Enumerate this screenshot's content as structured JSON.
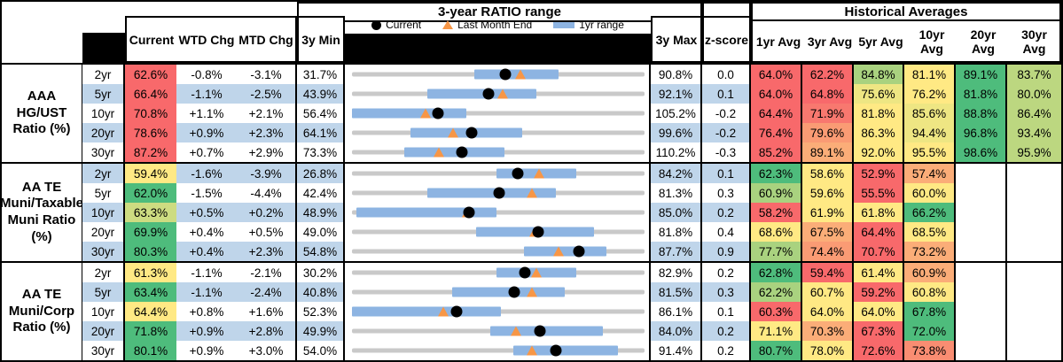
{
  "header": {
    "range_title": "3-year RATIO range",
    "averages_title": "Historical Averages",
    "current": "Current",
    "wtd": "WTD Chg",
    "mtd": "MTD Chg",
    "min": "3y Min",
    "max": "3y Max",
    "z": "z-score",
    "avg_cols": [
      "1yr Avg",
      "3yr Avg",
      "5yr Avg",
      "10yr Avg",
      "20yr Avg",
      "30yr Avg"
    ],
    "legend": {
      "current": "Current",
      "last_month": "Last Month End",
      "range": "1yr range"
    }
  },
  "colors": {
    "stripe_blue": "#BFD5EA",
    "range_bar_blue": "#8DB4E2",
    "track_gray": "#C9C9C9",
    "marker_orange": "#F79646",
    "marker_black": "#000000",
    "heat_red": "#F8696B",
    "heat_yellow": "#FFE984",
    "heat_green": "#4EBC7C"
  },
  "groups": [
    {
      "label_lines": [
        "AAA HG/UST",
        "Ratio (%)"
      ],
      "rows": [
        {
          "maturity": "2yr",
          "striped": false,
          "current": "62.6%",
          "current_bg": "#F8696B",
          "wtd": "-0.8%",
          "mtd": "-3.1%",
          "min": "31.7%",
          "max": "90.8%",
          "z": "0.0",
          "avgs": [
            {
              "v": "64.0%",
              "bg": "#F8696B"
            },
            {
              "v": "62.2%",
              "bg": "#F8696B"
            },
            {
              "v": "84.8%",
              "bg": "#A9D27F"
            },
            {
              "v": "81.1%",
              "bg": "#FFE984"
            },
            {
              "v": "89.1%",
              "bg": "#4EBC7C"
            },
            {
              "v": "83.7%",
              "bg": "#BCD780"
            }
          ],
          "chart": {
            "bar": [
              41.8,
              70.6
            ],
            "dot": 52.3,
            "tri": 57.5
          }
        },
        {
          "maturity": "5yr",
          "striped": true,
          "current": "66.4%",
          "current_bg": "#F8696B",
          "wtd": "-1.1%",
          "mtd": "-2.5%",
          "min": "43.9%",
          "max": "92.1%",
          "z": "0.1",
          "avgs": [
            {
              "v": "64.0%",
              "bg": "#F8696B"
            },
            {
              "v": "64.8%",
              "bg": "#F8696B"
            },
            {
              "v": "75.6%",
              "bg": "#EEE683"
            },
            {
              "v": "76.2%",
              "bg": "#FFE984"
            },
            {
              "v": "81.8%",
              "bg": "#4EBC7C"
            },
            {
              "v": "80.0%",
              "bg": "#BCD780"
            }
          ],
          "chart": {
            "bar": [
              25.8,
              63.0
            ],
            "dot": 46.7,
            "tri": 51.5
          }
        },
        {
          "maturity": "10yr",
          "striped": false,
          "current": "70.8%",
          "current_bg": "#F8696B",
          "wtd": "+1.1%",
          "mtd": "+2.1%",
          "min": "56.4%",
          "max": "105.2%",
          "z": "-0.2",
          "avgs": [
            {
              "v": "64.4%",
              "bg": "#F8696B"
            },
            {
              "v": "71.9%",
              "bg": "#F8786F"
            },
            {
              "v": "81.8%",
              "bg": "#FFE984"
            },
            {
              "v": "85.6%",
              "bg": "#EEE683"
            },
            {
              "v": "88.8%",
              "bg": "#4EBC7C"
            },
            {
              "v": "86.4%",
              "bg": "#BCD780"
            }
          ],
          "chart": {
            "bar": [
              0,
              39.1
            ],
            "dot": 29.5,
            "tri": 25.2
          }
        },
        {
          "maturity": "20yr",
          "striped": true,
          "current": "78.6%",
          "current_bg": "#F8696B",
          "wtd": "+0.9%",
          "mtd": "+2.3%",
          "min": "64.1%",
          "max": "99.6%",
          "z": "-0.2",
          "avgs": [
            {
              "v": "76.4%",
              "bg": "#F8696B"
            },
            {
              "v": "79.6%",
              "bg": "#FA9B74"
            },
            {
              "v": "86.3%",
              "bg": "#FFE984"
            },
            {
              "v": "94.4%",
              "bg": "#EEE683"
            },
            {
              "v": "96.8%",
              "bg": "#4EBC7C"
            },
            {
              "v": "93.4%",
              "bg": "#BCD780"
            }
          ],
          "chart": {
            "bar": [
              20.0,
              58.2
            ],
            "dot": 40.8,
            "tri": 34.5
          }
        },
        {
          "maturity": "30yr",
          "striped": false,
          "current": "87.2%",
          "current_bg": "#F8696B",
          "wtd": "+0.7%",
          "mtd": "+2.9%",
          "min": "73.3%",
          "max": "110.2%",
          "z": "-0.3",
          "avgs": [
            {
              "v": "85.2%",
              "bg": "#F8696B"
            },
            {
              "v": "89.1%",
              "bg": "#FBAD78"
            },
            {
              "v": "92.0%",
              "bg": "#FFE984"
            },
            {
              "v": "95.5%",
              "bg": "#FFE984"
            },
            {
              "v": "98.6%",
              "bg": "#4EBC7C"
            },
            {
              "v": "95.9%",
              "bg": "#BCD780"
            }
          ],
          "chart": {
            "bar": [
              17.9,
              52.1
            ],
            "dot": 37.7,
            "tri": 29.7
          }
        }
      ]
    },
    {
      "label_lines": [
        "AA TE",
        "Muni/Taxable",
        "Muni Ratio",
        "(%)"
      ],
      "rows": [
        {
          "maturity": "2yr",
          "striped": true,
          "current": "59.4%",
          "current_bg": "#FFE984",
          "wtd": "-1.6%",
          "mtd": "-3.9%",
          "min": "26.8%",
          "max": "84.2%",
          "z": "0.1",
          "avgs": [
            {
              "v": "62.3%",
              "bg": "#4EBC7C"
            },
            {
              "v": "58.6%",
              "bg": "#FFE984"
            },
            {
              "v": "52.9%",
              "bg": "#F8696B"
            },
            {
              "v": "57.4%",
              "bg": "#FBAD78"
            },
            {
              "v": "",
              "bg": "#FFFFFF"
            },
            {
              "v": "",
              "bg": "#FFFFFF"
            }
          ],
          "chart": {
            "bar": [
              49.4,
              76.7
            ],
            "dot": 56.8,
            "tri": 63.9
          }
        },
        {
          "maturity": "5yr",
          "striped": false,
          "current": "62.0%",
          "current_bg": "#4EBC7C",
          "wtd": "-1.5%",
          "mtd": "-4.4%",
          "min": "42.4%",
          "max": "81.3%",
          "z": "0.3",
          "avgs": [
            {
              "v": "60.9%",
              "bg": "#A9D27F"
            },
            {
              "v": "59.6%",
              "bg": "#FFE984"
            },
            {
              "v": "55.5%",
              "bg": "#F8696B"
            },
            {
              "v": "60.0%",
              "bg": "#FFE984"
            },
            {
              "v": "",
              "bg": "#FFFFFF"
            },
            {
              "v": "",
              "bg": "#FFFFFF"
            }
          ],
          "chart": {
            "bar": [
              25.8,
              69.7
            ],
            "dot": 50.4,
            "tri": 61.4
          }
        },
        {
          "maturity": "10yr",
          "striped": true,
          "current": "63.3%",
          "current_bg": "#CDDC81",
          "wtd": "+0.5%",
          "mtd": "+0.2%",
          "min": "48.9%",
          "max": "85.0%",
          "z": "0.2",
          "avgs": [
            {
              "v": "58.2%",
              "bg": "#F8696B"
            },
            {
              "v": "61.9%",
              "bg": "#FFE984"
            },
            {
              "v": "61.8%",
              "bg": "#FFE984"
            },
            {
              "v": "66.2%",
              "bg": "#4EBC7C"
            },
            {
              "v": "",
              "bg": "#FFFFFF"
            },
            {
              "v": "",
              "bg": "#FFFFFF"
            }
          ],
          "chart": {
            "bar": [
              1.5,
              49.4
            ],
            "dot": 39.9,
            "tri": 39.4
          }
        },
        {
          "maturity": "20yr",
          "striped": false,
          "current": "69.9%",
          "current_bg": "#4EBC7C",
          "wtd": "+0.4%",
          "mtd": "+0.5%",
          "min": "49.0%",
          "max": "81.8%",
          "z": "0.4",
          "avgs": [
            {
              "v": "68.6%",
              "bg": "#FFE984"
            },
            {
              "v": "67.5%",
              "bg": "#FBAD78"
            },
            {
              "v": "64.4%",
              "bg": "#F8696B"
            },
            {
              "v": "68.5%",
              "bg": "#FFE984"
            },
            {
              "v": "",
              "bg": "#FFFFFF"
            },
            {
              "v": "",
              "bg": "#FFFFFF"
            }
          ],
          "chart": {
            "bar": [
              42.4,
              82.8
            ],
            "dot": 63.7,
            "tri": 62.4
          }
        },
        {
          "maturity": "30yr",
          "striped": true,
          "current": "80.3%",
          "current_bg": "#4EBC7C",
          "wtd": "+0.4%",
          "mtd": "+2.3%",
          "min": "54.8%",
          "max": "87.7%",
          "z": "0.9",
          "avgs": [
            {
              "v": "77.7%",
              "bg": "#A9D27F"
            },
            {
              "v": "74.4%",
              "bg": "#FA9B74"
            },
            {
              "v": "70.7%",
              "bg": "#F8696B"
            },
            {
              "v": "73.2%",
              "bg": "#FBAD78"
            },
            {
              "v": "",
              "bg": "#FFFFFF"
            },
            {
              "v": "",
              "bg": "#FFFFFF"
            }
          ],
          "chart": {
            "bar": [
              58.8,
              86.9
            ],
            "dot": 77.5,
            "tri": 70.7
          }
        }
      ]
    },
    {
      "label_lines": [
        "AA TE",
        "Muni/Corp",
        "Ratio (%)"
      ],
      "rows": [
        {
          "maturity": "2yr",
          "striped": false,
          "current": "61.3%",
          "current_bg": "#FFE984",
          "wtd": "-1.1%",
          "mtd": "-2.1%",
          "min": "30.2%",
          "max": "82.9%",
          "z": "0.2",
          "avgs": [
            {
              "v": "62.8%",
              "bg": "#4EBC7C"
            },
            {
              "v": "59.4%",
              "bg": "#F8696B"
            },
            {
              "v": "61.4%",
              "bg": "#FFE984"
            },
            {
              "v": "60.9%",
              "bg": "#FBAD78"
            },
            {
              "v": "",
              "bg": "#FFFFFF"
            },
            {
              "v": "",
              "bg": "#FFFFFF"
            }
          ],
          "chart": {
            "bar": [
              49.4,
              76.7
            ],
            "dot": 59.0,
            "tri": 63.0
          }
        },
        {
          "maturity": "5yr",
          "striped": true,
          "current": "63.4%",
          "current_bg": "#4EBC7C",
          "wtd": "-1.1%",
          "mtd": "-2.4%",
          "min": "40.8%",
          "max": "81.5%",
          "z": "0.3",
          "avgs": [
            {
              "v": "62.2%",
              "bg": "#A9D27F"
            },
            {
              "v": "60.7%",
              "bg": "#FFE984"
            },
            {
              "v": "59.2%",
              "bg": "#F8696B"
            },
            {
              "v": "60.8%",
              "bg": "#FFE984"
            },
            {
              "v": "",
              "bg": "#FFFFFF"
            },
            {
              "v": "",
              "bg": "#FFFFFF"
            }
          ],
          "chart": {
            "bar": [
              34.2,
              72.7
            ],
            "dot": 55.5,
            "tri": 61.4
          }
        },
        {
          "maturity": "10yr",
          "striped": false,
          "current": "64.4%",
          "current_bg": "#FFE984",
          "wtd": "+0.8%",
          "mtd": "+1.6%",
          "min": "52.3%",
          "max": "86.1%",
          "z": "0.1",
          "avgs": [
            {
              "v": "60.3%",
              "bg": "#F8696B"
            },
            {
              "v": "64.0%",
              "bg": "#FFE984"
            },
            {
              "v": "64.0%",
              "bg": "#FFE984"
            },
            {
              "v": "67.8%",
              "bg": "#4EBC7C"
            },
            {
              "v": "",
              "bg": "#FFFFFF"
            },
            {
              "v": "",
              "bg": "#FFFFFF"
            }
          ],
          "chart": {
            "bar": [
              0,
              50.9
            ],
            "dot": 35.8,
            "tri": 31.2
          }
        },
        {
          "maturity": "20yr",
          "striped": true,
          "current": "71.8%",
          "current_bg": "#4EBC7C",
          "wtd": "+0.9%",
          "mtd": "+2.8%",
          "min": "49.9%",
          "max": "84.0%",
          "z": "0.2",
          "avgs": [
            {
              "v": "71.1%",
              "bg": "#FFE984"
            },
            {
              "v": "70.3%",
              "bg": "#FBAD78"
            },
            {
              "v": "67.3%",
              "bg": "#F8696B"
            },
            {
              "v": "72.0%",
              "bg": "#4EBC7C"
            },
            {
              "v": "",
              "bg": "#FFFFFF"
            },
            {
              "v": "",
              "bg": "#FFFFFF"
            }
          ],
          "chart": {
            "bar": [
              47.4,
              85.8
            ],
            "dot": 64.2,
            "tri": 56.1
          }
        },
        {
          "maturity": "30yr",
          "striped": false,
          "current": "80.1%",
          "current_bg": "#4EBC7C",
          "wtd": "+0.9%",
          "mtd": "+3.0%",
          "min": "54.0%",
          "max": "91.4%",
          "z": "0.2",
          "avgs": [
            {
              "v": "80.7%",
              "bg": "#4EBC7C"
            },
            {
              "v": "78.0%",
              "bg": "#FFE984"
            },
            {
              "v": "72.6%",
              "bg": "#F8696B"
            },
            {
              "v": "73.8%",
              "bg": "#F98D72"
            },
            {
              "v": "",
              "bg": "#FFFFFF"
            },
            {
              "v": "",
              "bg": "#FFFFFF"
            }
          ],
          "chart": {
            "bar": [
              55.1,
              90.9
            ],
            "dot": 69.8,
            "tri": 61.6
          }
        }
      ]
    }
  ]
}
